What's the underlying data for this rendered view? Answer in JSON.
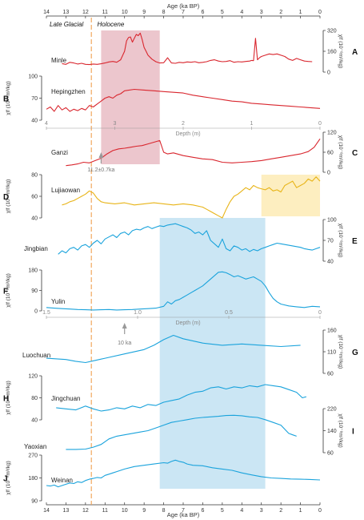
{
  "chart_data": {
    "type": "line",
    "colors": {
      "red": "#d9262e",
      "yellow": "#e8b417",
      "blue": "#1aa3dc",
      "pink_band": "#e6b3bc",
      "yellow_band": "#fdeec0",
      "blue_band": "#cbe6f4",
      "dashed": "#f0a050",
      "gray": "#999999"
    },
    "age_axis": {
      "label": "Age (ka BP)",
      "range": [
        14,
        0
      ],
      "ticks": [
        14,
        13,
        12,
        11,
        10,
        9,
        8,
        7,
        6,
        5,
        4,
        3,
        2,
        1,
        0
      ]
    },
    "periods": [
      "Late Glacial",
      "Holocene"
    ],
    "boundary_age": 11.7,
    "shaded_bands": [
      {
        "color": "pink",
        "age_range": [
          11.2,
          8.2
        ],
        "panels": [
          "A",
          "C"
        ]
      },
      {
        "color": "yellow",
        "age_range": [
          3.0,
          0.0
        ],
        "panels": [
          "D"
        ]
      },
      {
        "color": "blue",
        "age_range": [
          8.2,
          2.8
        ],
        "panels": [
          "E",
          "J"
        ]
      }
    ],
    "depth_axes": [
      {
        "label": "Depth (m)",
        "range": [
          4,
          0
        ],
        "ticks": [
          "4",
          "3",
          "2",
          "1",
          "0"
        ],
        "after_panel": "B"
      },
      {
        "label": "Depth (m)",
        "range": [
          1.5,
          0
        ],
        "ticks": [
          "1.5",
          "1.0",
          "0.5",
          "0"
        ],
        "after_panel": "F"
      }
    ],
    "annotations": [
      {
        "text": "11.2±0.7ka",
        "age": 11.2,
        "panel": "C"
      },
      {
        "text": "10 ka",
        "age": 10.0,
        "panel": "G"
      }
    ],
    "panels": [
      {
        "id": "A",
        "site": "Minle",
        "ylabel": "χlf (10⁻⁸m³/kg)",
        "side": "right",
        "ticks": [
          0,
          160,
          320
        ],
        "range": [
          0,
          320
        ],
        "color": "red",
        "x": [
          13.2,
          13.0,
          12.8,
          12.6,
          12.4,
          12.2,
          12.0,
          11.8,
          11.6,
          11.4,
          11.2,
          11.0,
          10.8,
          10.6,
          10.4,
          10.2,
          10.0,
          9.9,
          9.8,
          9.7,
          9.6,
          9.5,
          9.4,
          9.3,
          9.2,
          9.1,
          9.0,
          8.9,
          8.8,
          8.6,
          8.4,
          8.2,
          8.0,
          7.8,
          7.6,
          7.4,
          7.2,
          7.0,
          6.8,
          6.6,
          6.4,
          6.2,
          6.0,
          5.8,
          5.6,
          5.4,
          5.2,
          5.0,
          4.8,
          4.6,
          4.4,
          4.2,
          4.0,
          3.8,
          3.6,
          3.5,
          3.4,
          3.3,
          3.2,
          3.1,
          3.0,
          2.8,
          2.6,
          2.4,
          2.2,
          2.0,
          1.8,
          1.6,
          1.4,
          1.2,
          1.0,
          0.8,
          0.6,
          0.4
        ],
        "y": [
          65,
          60,
          75,
          70,
          62,
          68,
          60,
          58,
          62,
          60,
          64,
          70,
          78,
          82,
          76,
          95,
          160,
          240,
          265,
          270,
          230,
          260,
          290,
          280,
          300,
          250,
          190,
          160,
          130,
          100,
          80,
          70,
          72,
          110,
          70,
          68,
          75,
          72,
          78,
          76,
          80,
          72,
          75,
          80,
          90,
          95,
          85,
          80,
          82,
          88,
          76,
          80,
          78,
          82,
          85,
          90,
          88,
          260,
          95,
          110,
          120,
          130,
          140,
          135,
          140,
          130,
          120,
          100,
          90,
          105,
          95,
          85,
          82,
          80
        ]
      },
      {
        "id": "B",
        "site": "Hepingzhen",
        "ylabel": "χlf (10⁻⁸m³/kg)",
        "side": "left",
        "ticks": [
          40,
          70,
          100
        ],
        "range": [
          40,
          100
        ],
        "color": "red",
        "x": [
          14.0,
          13.8,
          13.6,
          13.4,
          13.2,
          13.0,
          12.8,
          12.6,
          12.4,
          12.2,
          12.0,
          11.8,
          11.6,
          11.4,
          11.2,
          11.0,
          10.8,
          10.6,
          10.4,
          10.2,
          10.0,
          9.5,
          9.0,
          8.5,
          8.0,
          7.5,
          7.0,
          6.5,
          6.0,
          5.5,
          5.0,
          4.5,
          4.0,
          3.5,
          3.0,
          2.5,
          2.0,
          1.5,
          1.0,
          0.5,
          0.0
        ],
        "y": [
          55,
          58,
          52,
          60,
          54,
          57,
          52,
          55,
          53,
          56,
          54,
          60,
          58,
          62,
          66,
          70,
          72,
          70,
          74,
          76,
          80,
          82,
          81,
          80,
          79,
          78,
          77,
          74,
          72,
          70,
          68,
          66,
          65,
          63,
          62,
          61,
          60,
          59,
          58,
          57,
          56
        ]
      },
      {
        "id": "C",
        "site": "Ganzi",
        "ylabel": "χlf (10⁻⁸m³/kg)",
        "side": "right",
        "ticks": [
          0,
          60,
          120
        ],
        "range": [
          0,
          120
        ],
        "color": "red",
        "x": [
          13.0,
          12.7,
          12.4,
          12.1,
          11.8,
          11.5,
          11.2,
          10.9,
          10.6,
          10.3,
          10.0,
          9.7,
          9.4,
          9.1,
          8.8,
          8.5,
          8.2,
          8.0,
          7.8,
          7.5,
          7.0,
          6.5,
          6.0,
          5.5,
          5.0,
          4.5,
          4.0,
          3.5,
          3.0,
          2.5,
          2.0,
          1.5,
          1.0,
          0.6,
          0.3,
          0.0
        ],
        "y": [
          20,
          22,
          25,
          30,
          28,
          35,
          42,
          55,
          65,
          70,
          72,
          75,
          78,
          80,
          85,
          90,
          95,
          60,
          55,
          58,
          50,
          45,
          40,
          38,
          30,
          28,
          30,
          32,
          35,
          40,
          45,
          50,
          55,
          62,
          75,
          100
        ]
      },
      {
        "id": "D",
        "site": "Lujiaowan",
        "ylabel": "χlf (10⁻⁸m³/kg)",
        "side": "left",
        "ticks": [
          40,
          60,
          80
        ],
        "range": [
          40,
          80
        ],
        "color": "yellow",
        "x": [
          13.2,
          13.0,
          12.8,
          12.6,
          12.4,
          12.2,
          12.0,
          11.8,
          11.6,
          11.4,
          11.2,
          11.0,
          10.5,
          10.0,
          9.5,
          9.0,
          8.5,
          8.0,
          7.5,
          7.0,
          6.5,
          6.0,
          5.8,
          5.6,
          5.4,
          5.2,
          5.0,
          4.8,
          4.6,
          4.4,
          4.2,
          4.0,
          3.8,
          3.6,
          3.4,
          3.2,
          3.0,
          2.8,
          2.6,
          2.4,
          2.2,
          2.0,
          1.8,
          1.6,
          1.4,
          1.2,
          1.0,
          0.8,
          0.6,
          0.4,
          0.2,
          0.0
        ],
        "y": [
          52,
          53,
          55,
          56,
          58,
          60,
          62,
          65,
          63,
          58,
          55,
          54,
          53,
          54,
          52,
          53,
          54,
          53,
          52,
          53,
          52,
          50,
          48,
          46,
          44,
          42,
          40,
          48,
          55,
          60,
          62,
          65,
          68,
          66,
          70,
          68,
          67,
          66,
          68,
          65,
          66,
          64,
          70,
          72,
          74,
          68,
          70,
          72,
          76,
          74,
          78,
          74
        ]
      },
      {
        "id": "E",
        "site": "Jingbian",
        "ylabel": "χlf (10⁻⁸m³/kg)",
        "side": "right",
        "ticks": [
          40,
          70,
          100
        ],
        "range": [
          40,
          100
        ],
        "color": "blue",
        "x": [
          13.4,
          13.2,
          13.0,
          12.8,
          12.6,
          12.4,
          12.2,
          12.0,
          11.8,
          11.6,
          11.4,
          11.2,
          11.0,
          10.8,
          10.6,
          10.4,
          10.2,
          10.0,
          9.8,
          9.6,
          9.4,
          9.2,
          9.0,
          8.8,
          8.6,
          8.4,
          8.2,
          8.0,
          7.8,
          7.6,
          7.4,
          7.2,
          7.0,
          6.8,
          6.6,
          6.4,
          6.2,
          6.0,
          5.8,
          5.6,
          5.4,
          5.2,
          5.0,
          4.8,
          4.6,
          4.4,
          4.2,
          4.0,
          3.8,
          3.6,
          3.4,
          3.2,
          3.0,
          2.8,
          2.6,
          2.4,
          2.2,
          2.0,
          1.8,
          1.6,
          1.4,
          1.2,
          1.0,
          0.8,
          0.6,
          0.4,
          0.2,
          0.0
        ],
        "y": [
          50,
          55,
          52,
          58,
          60,
          56,
          62,
          64,
          60,
          66,
          70,
          65,
          72,
          75,
          78,
          74,
          80,
          82,
          78,
          84,
          86,
          85,
          88,
          90,
          87,
          89,
          91,
          90,
          92,
          93,
          94,
          92,
          90,
          88,
          85,
          80,
          82,
          78,
          84,
          70,
          65,
          60,
          72,
          58,
          55,
          62,
          60,
          56,
          58,
          54,
          57,
          55,
          58,
          60,
          62,
          64,
          66,
          65,
          64,
          63,
          62,
          61,
          60,
          58,
          57,
          56,
          58,
          60
        ]
      },
      {
        "id": "F",
        "site": "Yulin",
        "ylabel": "χlf (10⁻⁸m³/kg)",
        "side": "left",
        "ticks": [
          0,
          90,
          180
        ],
        "range": [
          0,
          180
        ],
        "color": "blue",
        "x": [
          14.0,
          13.6,
          13.2,
          12.8,
          12.4,
          12.0,
          11.6,
          11.2,
          10.8,
          10.4,
          10.0,
          9.6,
          9.2,
          8.8,
          8.4,
          8.0,
          7.8,
          7.6,
          7.4,
          7.2,
          7.0,
          6.8,
          6.6,
          6.4,
          6.2,
          6.0,
          5.8,
          5.6,
          5.4,
          5.2,
          5.0,
          4.8,
          4.6,
          4.4,
          4.2,
          4.0,
          3.8,
          3.6,
          3.4,
          3.2,
          3.0,
          2.8,
          2.6,
          2.4,
          2.2,
          2.0,
          1.6,
          1.2,
          0.8,
          0.4,
          0.0
        ],
        "y": [
          15,
          12,
          10,
          8,
          6,
          5,
          4,
          5,
          6,
          4,
          5,
          6,
          8,
          10,
          12,
          20,
          40,
          30,
          45,
          50,
          60,
          70,
          80,
          90,
          100,
          110,
          125,
          140,
          155,
          170,
          172,
          168,
          160,
          150,
          155,
          148,
          140,
          145,
          150,
          140,
          130,
          110,
          80,
          55,
          40,
          30,
          22,
          18,
          15,
          20,
          18
        ]
      },
      {
        "id": "G",
        "site": "Luochuan",
        "ylabel": "χlf (10⁻⁸m³/kg)",
        "side": "right",
        "ticks": [
          60,
          110,
          160
        ],
        "range": [
          60,
          160
        ],
        "color": "blue",
        "x": [
          14.0,
          13.0,
          12.5,
          12.0,
          11.5,
          11.0,
          10.0,
          9.0,
          8.5,
          8.0,
          7.5,
          7.0,
          6.0,
          5.0,
          4.0,
          3.0,
          2.0,
          1.0
        ],
        "y": [
          95,
          92,
          88,
          85,
          90,
          95,
          105,
          115,
          125,
          138,
          148,
          140,
          130,
          125,
          128,
          125,
          122,
          125
        ]
      },
      {
        "id": "H",
        "site": "Jingchuan",
        "ylabel": "χlf (10⁻⁸m³/kg)",
        "side": "left",
        "ticks": [
          40,
          80,
          120
        ],
        "range": [
          40,
          120
        ],
        "color": "blue",
        "x": [
          13.5,
          13.0,
          12.5,
          12.0,
          11.6,
          11.2,
          10.8,
          10.4,
          10.0,
          9.6,
          9.2,
          8.8,
          8.4,
          8.0,
          7.6,
          7.2,
          6.8,
          6.4,
          6.0,
          5.6,
          5.2,
          4.8,
          4.4,
          4.0,
          3.6,
          3.2,
          2.8,
          2.4,
          2.0,
          1.6,
          1.2,
          0.9,
          0.7
        ],
        "y": [
          62,
          60,
          58,
          65,
          60,
          56,
          58,
          62,
          60,
          65,
          62,
          68,
          66,
          72,
          75,
          78,
          85,
          90,
          92,
          98,
          100,
          96,
          100,
          98,
          102,
          100,
          104,
          102,
          100,
          95,
          90,
          80,
          82
        ]
      },
      {
        "id": "I",
        "site": "Yaoxian",
        "ylabel": "χlf (10⁻⁸m³/kg)",
        "side": "right",
        "ticks": [
          60,
          140,
          220
        ],
        "range": [
          60,
          220
        ],
        "color": "blue",
        "x": [
          13.0,
          12.5,
          12.0,
          11.6,
          11.2,
          10.8,
          10.4,
          10.0,
          9.6,
          9.2,
          8.8,
          8.4,
          8.0,
          7.6,
          7.2,
          6.8,
          6.4,
          6.0,
          5.6,
          5.2,
          4.8,
          4.4,
          4.0,
          3.6,
          3.2,
          2.8,
          2.4,
          2.0,
          1.6,
          1.4,
          1.2
        ],
        "y": [
          72,
          72,
          73,
          80,
          90,
          110,
          120,
          125,
          130,
          135,
          140,
          150,
          160,
          170,
          175,
          180,
          185,
          188,
          190,
          192,
          195,
          196,
          194,
          190,
          188,
          180,
          170,
          160,
          130,
          125,
          120
        ]
      },
      {
        "id": "J",
        "site": "Weinan",
        "ylabel": "χlf (10⁻⁸m³/kg)",
        "side": "left",
        "ticks": [
          90,
          180,
          270
        ],
        "range": [
          90,
          270
        ],
        "color": "blue",
        "x": [
          14.0,
          13.8,
          13.6,
          13.4,
          13.2,
          13.0,
          12.8,
          12.6,
          12.4,
          12.2,
          12.0,
          11.8,
          11.6,
          11.4,
          11.2,
          11.0,
          10.8,
          10.6,
          10.4,
          10.2,
          10.0,
          9.5,
          9.0,
          8.5,
          8.0,
          7.8,
          7.6,
          7.4,
          7.2,
          7.0,
          6.8,
          6.5,
          6.0,
          5.5,
          5.0,
          4.5,
          4.0,
          3.5,
          3.0,
          2.5,
          2.0,
          1.5,
          1.0,
          0.5,
          0.0
        ],
        "y": [
          150,
          148,
          152,
          145,
          150,
          155,
          160,
          158,
          165,
          162,
          170,
          175,
          178,
          182,
          180,
          190,
          195,
          200,
          205,
          210,
          215,
          225,
          230,
          235,
          240,
          238,
          245,
          250,
          245,
          242,
          235,
          230,
          228,
          220,
          215,
          210,
          200,
          192,
          185,
          180,
          178,
          176,
          175,
          174,
          172
        ]
      }
    ]
  }
}
